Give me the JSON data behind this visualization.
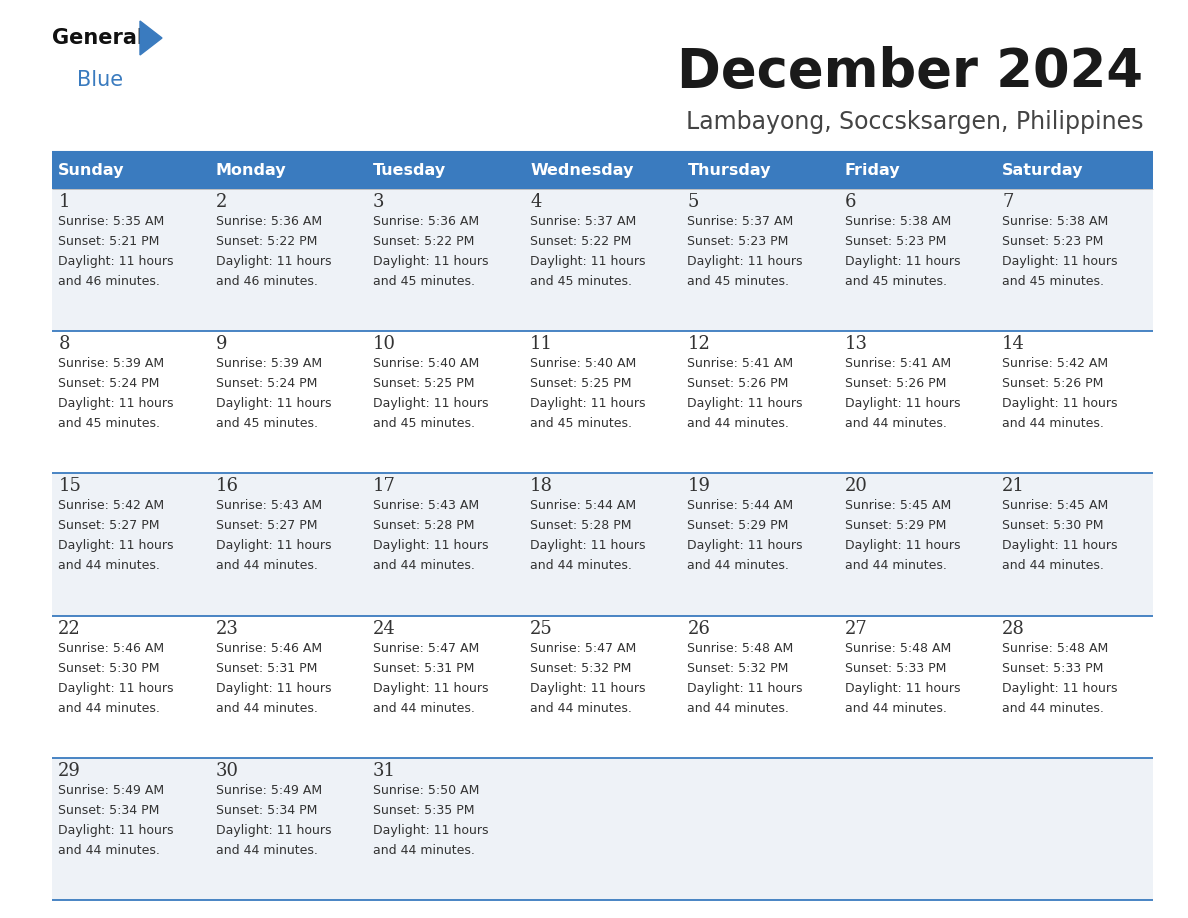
{
  "title": "December 2024",
  "subtitle": "Lambayong, Soccsksargen, Philippines",
  "header_bg_color": "#3a7bbf",
  "header_text_color": "#ffffff",
  "row_bg_even": "#eef2f7",
  "row_bg_odd": "#ffffff",
  "cell_border_color": "#3a7bbf",
  "text_color": "#333333",
  "days_of_week": [
    "Sunday",
    "Monday",
    "Tuesday",
    "Wednesday",
    "Thursday",
    "Friday",
    "Saturday"
  ],
  "calendar_data": [
    [
      {
        "day": "1",
        "sunrise": "5:35 AM",
        "sunset": "5:21 PM",
        "daylight_min": "46"
      },
      {
        "day": "2",
        "sunrise": "5:36 AM",
        "sunset": "5:22 PM",
        "daylight_min": "46"
      },
      {
        "day": "3",
        "sunrise": "5:36 AM",
        "sunset": "5:22 PM",
        "daylight_min": "45"
      },
      {
        "day": "4",
        "sunrise": "5:37 AM",
        "sunset": "5:22 PM",
        "daylight_min": "45"
      },
      {
        "day": "5",
        "sunrise": "5:37 AM",
        "sunset": "5:23 PM",
        "daylight_min": "45"
      },
      {
        "day": "6",
        "sunrise": "5:38 AM",
        "sunset": "5:23 PM",
        "daylight_min": "45"
      },
      {
        "day": "7",
        "sunrise": "5:38 AM",
        "sunset": "5:23 PM",
        "daylight_min": "45"
      }
    ],
    [
      {
        "day": "8",
        "sunrise": "5:39 AM",
        "sunset": "5:24 PM",
        "daylight_min": "45"
      },
      {
        "day": "9",
        "sunrise": "5:39 AM",
        "sunset": "5:24 PM",
        "daylight_min": "45"
      },
      {
        "day": "10",
        "sunrise": "5:40 AM",
        "sunset": "5:25 PM",
        "daylight_min": "45"
      },
      {
        "day": "11",
        "sunrise": "5:40 AM",
        "sunset": "5:25 PM",
        "daylight_min": "45"
      },
      {
        "day": "12",
        "sunrise": "5:41 AM",
        "sunset": "5:26 PM",
        "daylight_min": "44"
      },
      {
        "day": "13",
        "sunrise": "5:41 AM",
        "sunset": "5:26 PM",
        "daylight_min": "44"
      },
      {
        "day": "14",
        "sunrise": "5:42 AM",
        "sunset": "5:26 PM",
        "daylight_min": "44"
      }
    ],
    [
      {
        "day": "15",
        "sunrise": "5:42 AM",
        "sunset": "5:27 PM",
        "daylight_min": "44"
      },
      {
        "day": "16",
        "sunrise": "5:43 AM",
        "sunset": "5:27 PM",
        "daylight_min": "44"
      },
      {
        "day": "17",
        "sunrise": "5:43 AM",
        "sunset": "5:28 PM",
        "daylight_min": "44"
      },
      {
        "day": "18",
        "sunrise": "5:44 AM",
        "sunset": "5:28 PM",
        "daylight_min": "44"
      },
      {
        "day": "19",
        "sunrise": "5:44 AM",
        "sunset": "5:29 PM",
        "daylight_min": "44"
      },
      {
        "day": "20",
        "sunrise": "5:45 AM",
        "sunset": "5:29 PM",
        "daylight_min": "44"
      },
      {
        "day": "21",
        "sunrise": "5:45 AM",
        "sunset": "5:30 PM",
        "daylight_min": "44"
      }
    ],
    [
      {
        "day": "22",
        "sunrise": "5:46 AM",
        "sunset": "5:30 PM",
        "daylight_min": "44"
      },
      {
        "day": "23",
        "sunrise": "5:46 AM",
        "sunset": "5:31 PM",
        "daylight_min": "44"
      },
      {
        "day": "24",
        "sunrise": "5:47 AM",
        "sunset": "5:31 PM",
        "daylight_min": "44"
      },
      {
        "day": "25",
        "sunrise": "5:47 AM",
        "sunset": "5:32 PM",
        "daylight_min": "44"
      },
      {
        "day": "26",
        "sunrise": "5:48 AM",
        "sunset": "5:32 PM",
        "daylight_min": "44"
      },
      {
        "day": "27",
        "sunrise": "5:48 AM",
        "sunset": "5:33 PM",
        "daylight_min": "44"
      },
      {
        "day": "28",
        "sunrise": "5:48 AM",
        "sunset": "5:33 PM",
        "daylight_min": "44"
      }
    ],
    [
      {
        "day": "29",
        "sunrise": "5:49 AM",
        "sunset": "5:34 PM",
        "daylight_min": "44"
      },
      {
        "day": "30",
        "sunrise": "5:49 AM",
        "sunset": "5:34 PM",
        "daylight_min": "44"
      },
      {
        "day": "31",
        "sunrise": "5:50 AM",
        "sunset": "5:35 PM",
        "daylight_min": "44"
      },
      null,
      null,
      null,
      null
    ]
  ],
  "logo_text1": "General",
  "logo_text2": "Blue",
  "logo_triangle_color": "#3a7bbf",
  "title_fontsize": 38,
  "subtitle_fontsize": 17,
  "header_fontsize": 11.5,
  "day_num_fontsize": 13,
  "cell_fontsize": 9
}
